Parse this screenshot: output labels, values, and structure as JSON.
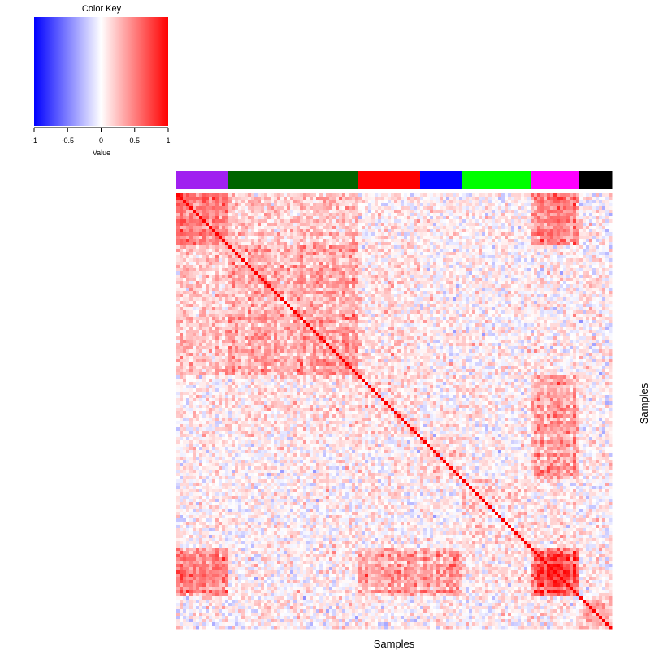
{
  "chart_data": {
    "type": "heatmap",
    "description": "Symmetric sample-by-sample correlation matrix (134 x 134) with a group color bar above the columns. Cell values are correlations in [-1, 1] mapped with a blue-white-red scale; the diagonal is 1.",
    "n_samples": 134,
    "value_range": [
      -1,
      1
    ],
    "color_scale": {
      "low": "#0000ff",
      "mid": "#ffffff",
      "high": "#ff0000"
    },
    "color_key": {
      "title": "Color Key",
      "xlabel": "Value",
      "ticks": [
        "-1",
        "-0.5",
        "0",
        "0.5",
        "1"
      ],
      "tick_values": [
        -1,
        -0.5,
        0,
        0.5,
        1
      ]
    },
    "xlabel": "Samples",
    "ylabel": "Samples",
    "groups": [
      {
        "color": "#a020f0",
        "n": 16
      },
      {
        "color": "#006400",
        "n": 40
      },
      {
        "color": "#ff0000",
        "n": 19
      },
      {
        "color": "#0000ff",
        "n": 13
      },
      {
        "color": "#00ff00",
        "n": 21
      },
      {
        "color": "#ff00ff",
        "n": 15
      },
      {
        "color": "#000000",
        "n": 10
      }
    ],
    "block_structure": {
      "diagonal": 1.0,
      "within_group_mean": [
        0.5,
        0.3,
        0.15,
        0.15,
        0.15,
        0.65,
        0.3
      ],
      "notable_cross_group_mean": [
        {
          "groups": [
            0,
            5
          ],
          "value": 0.45
        },
        {
          "groups": [
            0,
            1
          ],
          "value": 0.2
        },
        {
          "groups": [
            2,
            5
          ],
          "value": 0.35
        },
        {
          "groups": [
            3,
            5
          ],
          "value": 0.35
        },
        {
          "groups": [
            1,
            2
          ],
          "value": 0.1
        },
        {
          "groups": [
            4,
            5
          ],
          "value": 0.1
        }
      ],
      "background_mean": 0.05,
      "noise_sd": 0.14
    }
  }
}
